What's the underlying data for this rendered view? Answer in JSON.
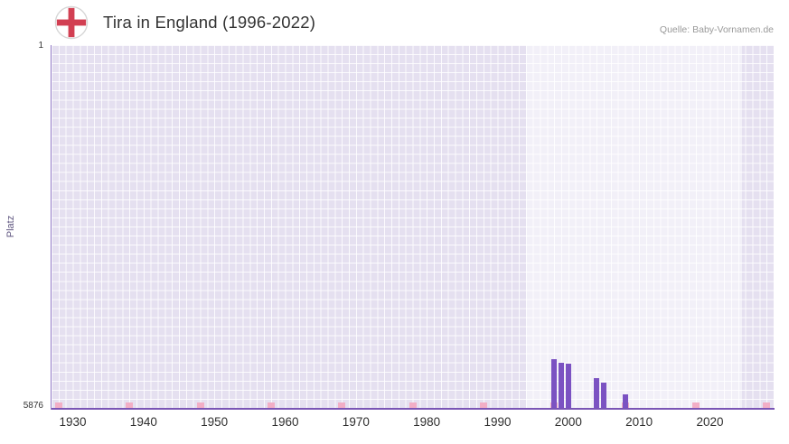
{
  "header": {
    "title": "Tira in England (1996-2022)",
    "source": "Quelle: Baby-Vornamen.de"
  },
  "y_axis": {
    "title": "Platz",
    "top_tick": "1",
    "bottom_tick": "5876"
  },
  "chart_data": {
    "type": "bar",
    "title": "Tira in England (1996-2022)",
    "xlabel": "",
    "ylabel": "Platz",
    "y_axis": {
      "min": 1,
      "max": 5876,
      "inverted": true,
      "tick_labels": [
        "1",
        "5876"
      ]
    },
    "x_axis": {
      "min": 1927,
      "max": 2029,
      "tick_years": [
        1930,
        1940,
        1950,
        1960,
        1970,
        1980,
        1990,
        2000,
        2010,
        2020
      ]
    },
    "plot_band": {
      "from": 1994,
      "to": 2024.5
    },
    "series": [
      {
        "name": "Platz",
        "color": "#7b52c2",
        "points": [
          {
            "year": 1998,
            "rank": 5085
          },
          {
            "year": 1999,
            "rank": 5148
          },
          {
            "year": 2000,
            "rank": 5162
          },
          {
            "year": 2004,
            "rank": 5394
          },
          {
            "year": 2005,
            "rank": 5466
          },
          {
            "year": 2008,
            "rank": 5657
          }
        ]
      }
    ],
    "decade_markers": {
      "color": "#f2aec6",
      "years": [
        1928,
        1938,
        1948,
        1958,
        1968,
        1978,
        1988,
        1998,
        2008,
        2018,
        2028
      ]
    },
    "grid": true,
    "legend": false
  },
  "colors": {
    "plot_bg": "#e5e0f0",
    "grid_line": "#ffffff",
    "band_overlay": "rgba(255,255,255,0.5)",
    "bar": "#7b52c2",
    "axis_line": "#7a55b5",
    "marker_pink": "#f2aec6",
    "title_text": "#333333",
    "source_text": "#999999",
    "tick_text": "#2f2f2f",
    "flag_red": "#d23f52"
  }
}
